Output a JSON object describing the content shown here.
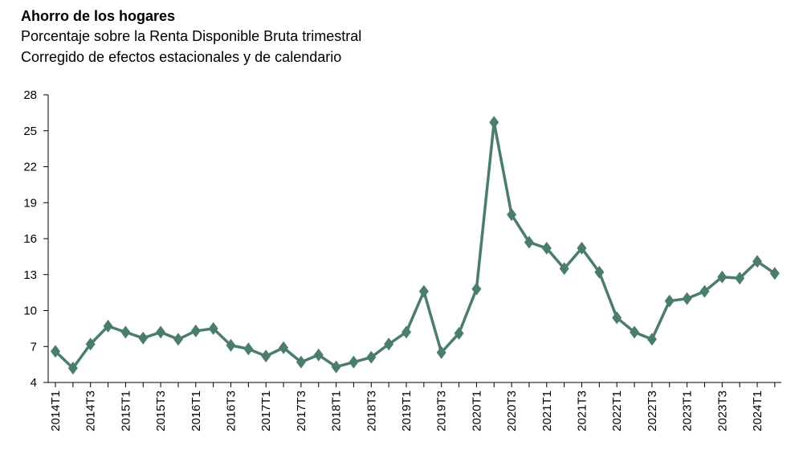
{
  "header": {
    "title": "Ahorro de los hogares",
    "subtitle1": "Porcentaje sobre la Renta Disponible Bruta trimestral",
    "subtitle2": "Corregido de efectos estacionales y de calendario"
  },
  "colors": {
    "series": "#4a7d70",
    "axis": "#000000"
  },
  "chart_data": {
    "type": "line",
    "title": "Ahorro de los hogares",
    "subtitle": "Porcentaje sobre la Renta Disponible Bruta trimestral. Corregido de efectos estacionales y de calendario",
    "xlabel": "",
    "ylabel": "",
    "ylim": [
      4,
      28
    ],
    "yticks": [
      4,
      7,
      10,
      13,
      16,
      19,
      22,
      25,
      28
    ],
    "grid": false,
    "legend": "none",
    "marker": "diamond",
    "x": [
      "2014T1",
      "2014T2",
      "2014T3",
      "2014T4",
      "2015T1",
      "2015T2",
      "2015T3",
      "2015T4",
      "2016T1",
      "2016T2",
      "2016T3",
      "2016T4",
      "2017T1",
      "2017T2",
      "2017T3",
      "2017T4",
      "2018T1",
      "2018T2",
      "2018T3",
      "2018T4",
      "2019T1",
      "2019T2",
      "2019T3",
      "2019T4",
      "2020T1",
      "2020T2",
      "2020T3",
      "2020T4",
      "2021T1",
      "2021T2",
      "2021T3",
      "2021T4",
      "2022T1",
      "2022T2",
      "2022T3",
      "2022T4",
      "2023T1",
      "2023T2",
      "2023T3",
      "2023T4",
      "2024T1",
      "2024T2"
    ],
    "xtick_labels": [
      "2014T1",
      "2014T3",
      "2015T1",
      "2015T3",
      "2016T1",
      "2016T3",
      "2017T1",
      "2017T3",
      "2018T1",
      "2018T3",
      "2019T1",
      "2019T3",
      "2020T1",
      "2020T3",
      "2021T1",
      "2021T3",
      "2022T1",
      "2022T3",
      "2023T1",
      "2023T3",
      "2024T1"
    ],
    "series": [
      {
        "values": [
          6.6,
          5.2,
          7.2,
          8.7,
          8.2,
          7.7,
          8.2,
          7.6,
          8.3,
          8.5,
          7.1,
          6.8,
          6.2,
          6.9,
          5.7,
          6.3,
          5.3,
          5.7,
          6.1,
          7.2,
          8.2,
          11.6,
          6.5,
          8.1,
          11.8,
          25.7,
          18.0,
          15.7,
          15.2,
          13.5,
          15.2,
          13.2,
          9.4,
          8.2,
          7.6,
          10.8,
          11.0,
          11.6,
          12.8,
          12.7,
          14.1,
          13.1
        ]
      }
    ]
  }
}
